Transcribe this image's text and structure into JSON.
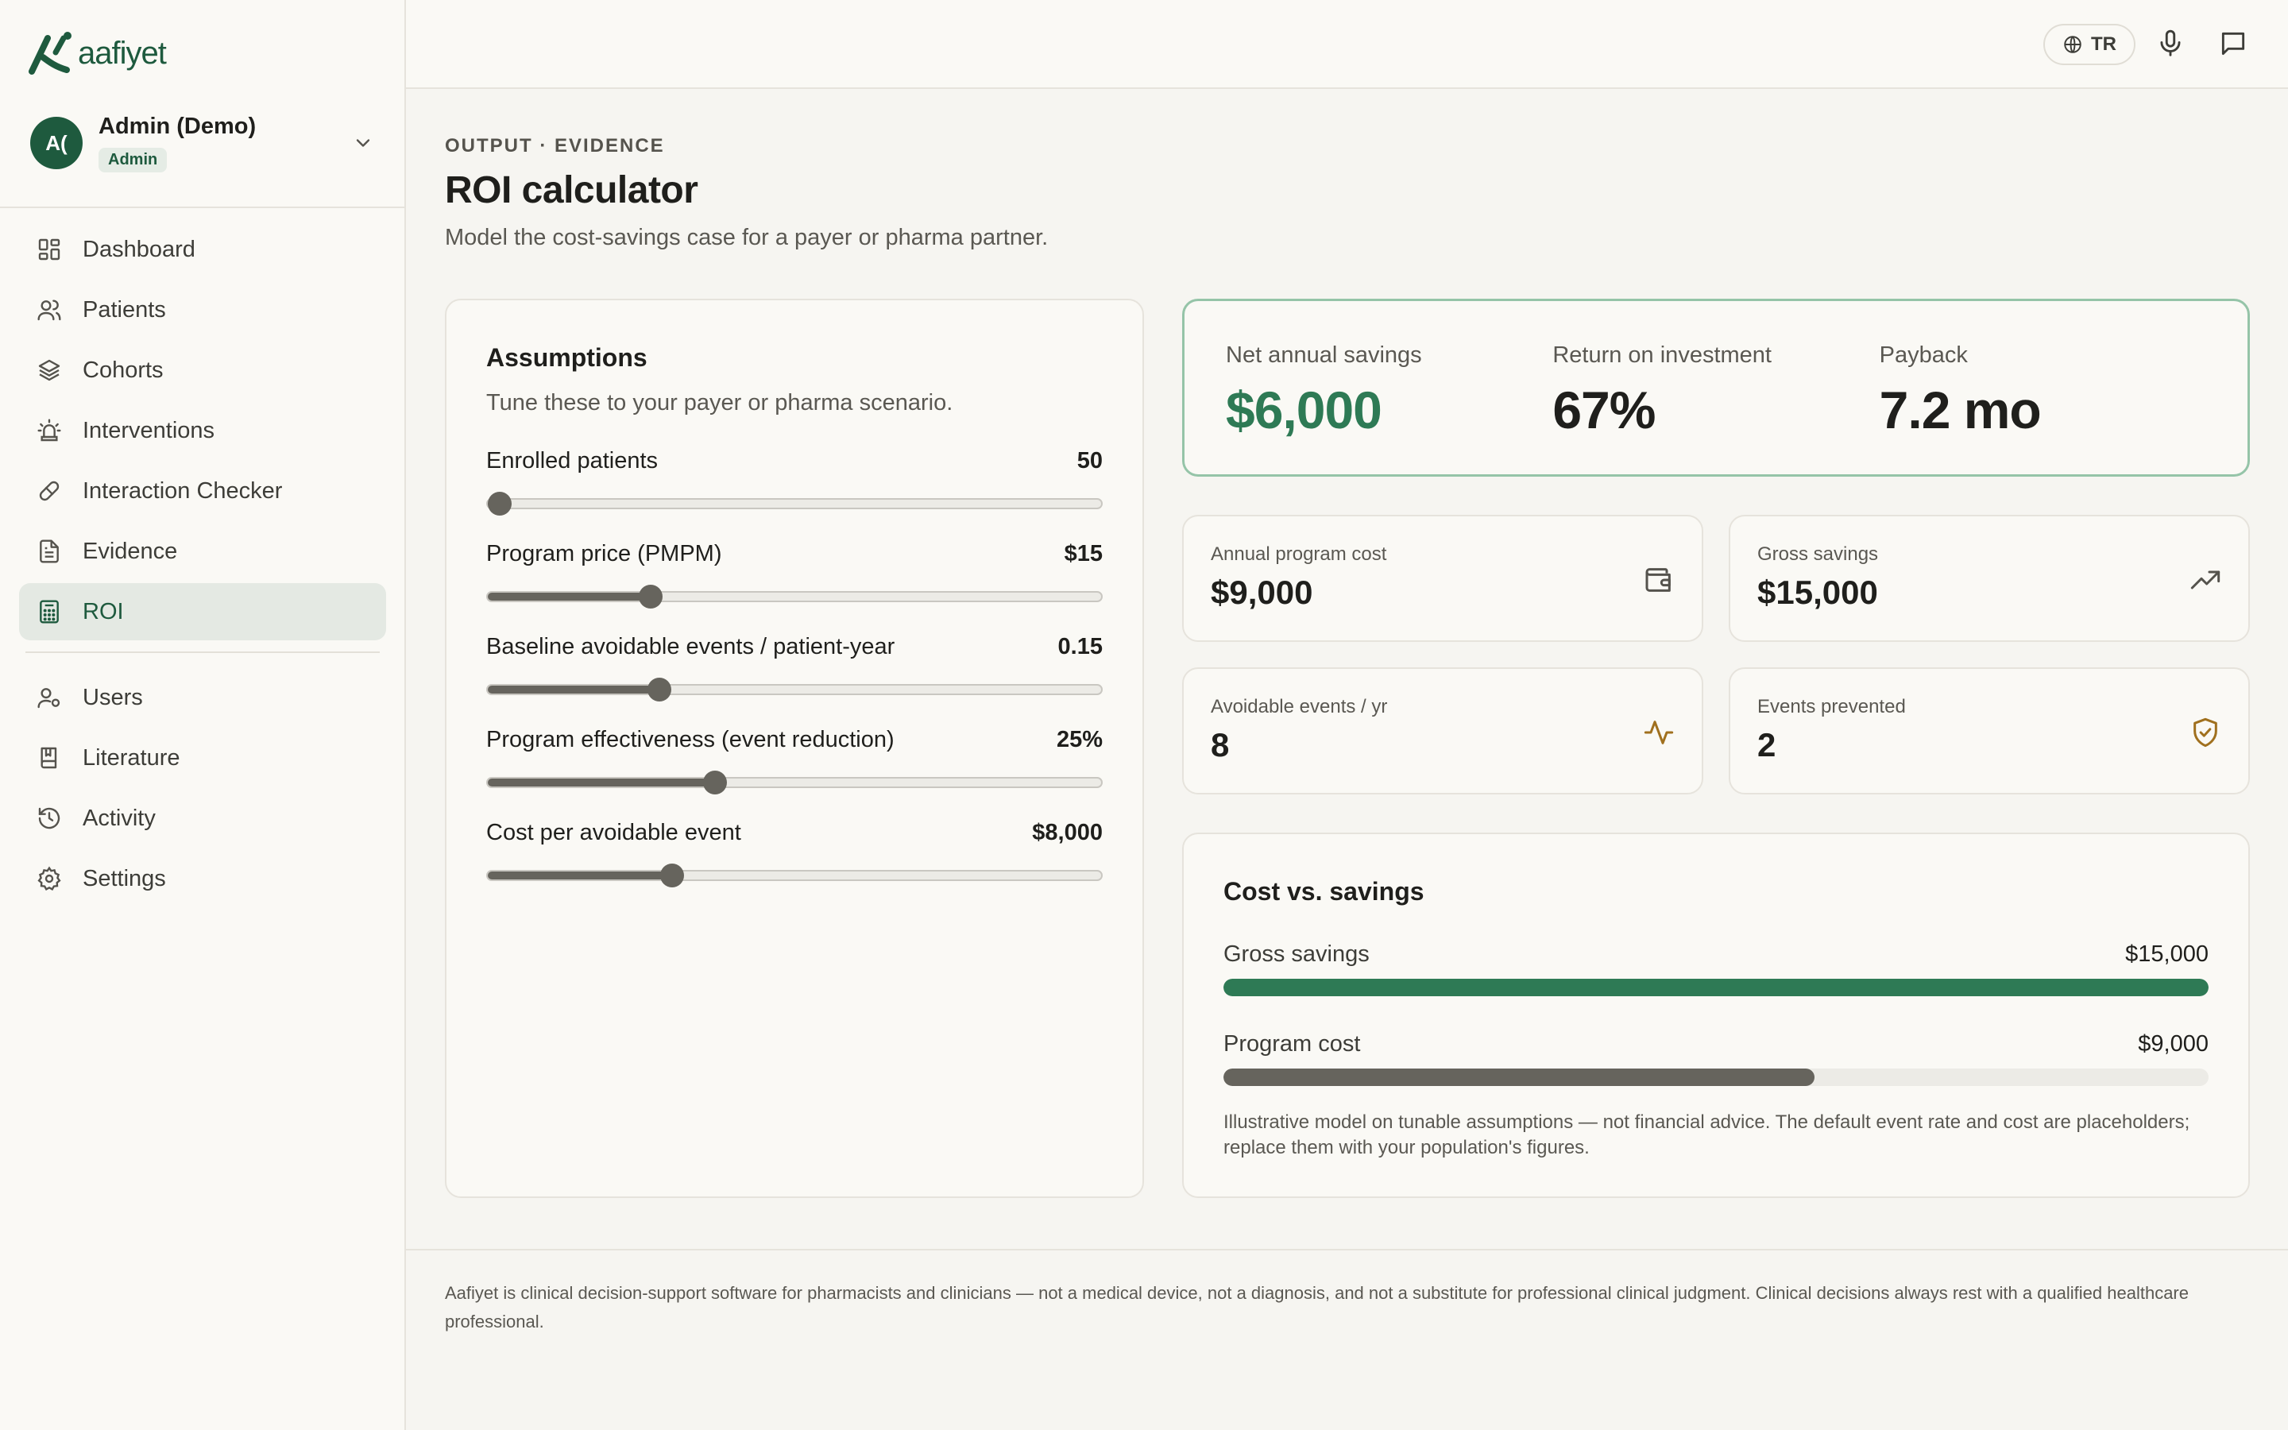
{
  "app": {
    "name": "aafiyet"
  },
  "user": {
    "initials": "A(",
    "name": "Admin (Demo)",
    "role": "Admin"
  },
  "nav": {
    "dashboard": "Dashboard",
    "patients": "Patients",
    "cohorts": "Cohorts",
    "interventions": "Interventions",
    "interaction_checker": "Interaction Checker",
    "evidence": "Evidence",
    "roi": "ROI",
    "users": "Users",
    "literature": "Literature",
    "activity": "Activity",
    "settings": "Settings"
  },
  "topbar": {
    "language": "TR"
  },
  "page": {
    "eyebrow": "OUTPUT · EVIDENCE",
    "title": "ROI calculator",
    "subtitle": "Model the cost-savings case for a payer or pharma partner."
  },
  "assumptions": {
    "title": "Assumptions",
    "subtitle": "Tune these to your payer or pharma scenario.",
    "sliders": [
      {
        "label": "Enrolled patients",
        "value": "50",
        "fraction": 0.02
      },
      {
        "label": "Program price (PMPM)",
        "value": "$15",
        "fraction": 0.265
      },
      {
        "label": "Baseline avoidable events / patient-year",
        "value": "0.15",
        "fraction": 0.28
      },
      {
        "label": "Program effectiveness (event reduction)",
        "value": "25%",
        "fraction": 0.37
      },
      {
        "label": "Cost per avoidable event",
        "value": "$8,000",
        "fraction": 0.3
      }
    ]
  },
  "summary": {
    "net_label": "Net annual savings",
    "net_value": "$6,000",
    "roi_label": "Return on investment",
    "roi_value": "67%",
    "payback_label": "Payback",
    "payback_value": "7.2 mo"
  },
  "metrics": {
    "program_cost_label": "Annual program cost",
    "program_cost_value": "$9,000",
    "gross_label": "Gross savings",
    "gross_value": "$15,000",
    "events_label": "Avoidable events / yr",
    "events_value": "8",
    "prevented_label": "Events prevented",
    "prevented_value": "2"
  },
  "cost_vs_savings": {
    "title": "Cost vs. savings",
    "bars": [
      {
        "label": "Gross savings",
        "value_text": "$15,000",
        "value": 15000,
        "color": "#2e7a55"
      },
      {
        "label": "Program cost",
        "value_text": "$9,000",
        "value": 9000,
        "color": "#66645d"
      }
    ],
    "max": 15000,
    "note": "Illustrative model on tunable assumptions — not financial advice. The default event rate and cost are placeholders; replace them with your population's figures."
  },
  "colors": {
    "brand": "#1e5a3e",
    "accent_green": "#2e7a55",
    "icon_gold": "#a0701e",
    "highlight_border": "#95c4a8"
  },
  "footer": {
    "text": "Aafiyet is clinical decision-support software for pharmacists and clinicians — not a medical device, not a diagnosis, and not a substitute for professional clinical judgment. Clinical decisions always rest with a qualified healthcare professional."
  }
}
